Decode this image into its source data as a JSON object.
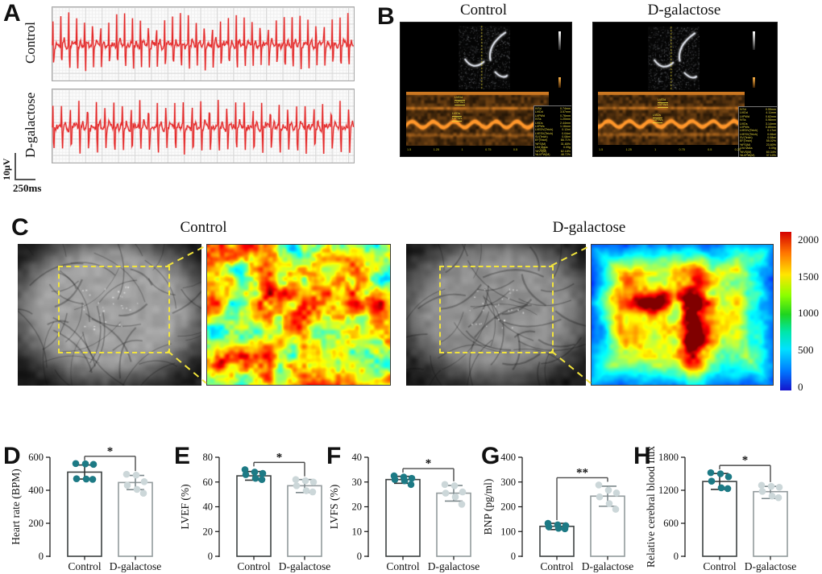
{
  "colors": {
    "control_point": "#1d7a85",
    "dgal_point": "#ccd7d9",
    "control_stroke": "#3d4242",
    "dgal_stroke": "#939b9d",
    "control_err": "#2f3333",
    "dgal_err": "#7d898c",
    "ecg_trace": "#e32a2a",
    "roi_yellow": "#f2e43c",
    "annotation_yellow": "#e8d93c"
  },
  "panel_a": {
    "letter": "A",
    "trace_labels": [
      "Control",
      "D-galactose"
    ],
    "scale_vertical": "10μV",
    "scale_horizontal": "250ms"
  },
  "panel_b": {
    "letter": "B",
    "headers": [
      "Control",
      "D-galactose"
    ],
    "time_ticks": [
      "1.5",
      "1.25",
      "1",
      "0.75",
      "0.5",
      "0.25"
    ],
    "control_annotations": {
      "top": [
        "LVIDd",
        "LVPWd"
      ],
      "mid": [
        "LVIDs",
        "LVPWs"
      ]
    },
    "dgal_annotations": {
      "top": [
        "LVIDd",
        "LVPWd"
      ],
      "mid": [
        "LVIDs",
        "LVPWs"
      ]
    },
    "control_measurements": [
      [
        "IVSd",
        "0.74mm"
      ],
      [
        "LVIDd",
        "3.57mm"
      ],
      [
        "LVPWd",
        "0.76mm"
      ],
      [
        "IVSs",
        "1.20mm"
      ],
      [
        "LVIDs",
        "2.44mm"
      ],
      [
        "LVPWs",
        "1.16mm"
      ],
      [
        "LVEDV(Teich)",
        "0.12ml"
      ],
      [
        "LVESV(Teich)",
        "0.04ml"
      ],
      [
        "SV(Teich)",
        "0.08ml"
      ],
      [
        "EF(Teich)",
        "66.71%"
      ],
      [
        "%FS(M)",
        "31.65%"
      ],
      [
        "LVd Mass",
        "0.09g"
      ],
      [
        "%IVS(M)",
        "62.18%"
      ],
      [
        "%LVPW(M)",
        "48.72%"
      ]
    ],
    "dgal_measurements": [
      [
        "IVSd",
        "0.55mm"
      ],
      [
        "LVIDd",
        "4.11mm"
      ],
      [
        "LVPWd",
        "0.62mm"
      ],
      [
        "IVSs",
        "0.96mm"
      ],
      [
        "LVIDs",
        "3.14mm"
      ],
      [
        "LVPWs",
        "0.85mm"
      ],
      [
        "LVEDV(Teich)",
        "0.17ml"
      ],
      [
        "LVESV(Teich)",
        "0.06ml"
      ],
      [
        "SV(Teich)",
        "0.08ml"
      ],
      [
        "EF(Teich)",
        "55.02%"
      ],
      [
        "%FS(M)",
        "23.60%"
      ],
      [
        "LVd Mass",
        "0.09g"
      ],
      [
        "%IVS(M)",
        "60.34%"
      ],
      [
        "%LVPW(M)",
        "37.10%"
      ]
    ]
  },
  "panel_c": {
    "letter": "C",
    "headers": [
      "Control",
      "D-galactose"
    ],
    "colorbar_ticks": [
      "2000",
      "1500",
      "1000",
      "500",
      "0"
    ]
  },
  "chart_data": [
    {
      "panel": "D",
      "type": "bar",
      "ylabel": "Heart rate (BPM)",
      "ylim": [
        0,
        600
      ],
      "yticks": [
        0,
        200,
        400,
        600
      ],
      "categories": [
        "Control",
        "D-galactose"
      ],
      "significance": "*",
      "series": [
        {
          "name": "Control",
          "mean": 510,
          "sd": [
            468,
            553
          ],
          "points": [
            562,
            560,
            557,
            470,
            468,
            466
          ]
        },
        {
          "name": "D-galactose",
          "mean": 447,
          "sd": [
            404,
            490
          ],
          "points": [
            497,
            492,
            452,
            430,
            405,
            382
          ]
        }
      ]
    },
    {
      "panel": "E",
      "type": "bar",
      "ylabel": "LVEF (%)",
      "ylim": [
        0,
        80
      ],
      "yticks": [
        0,
        20,
        40,
        60,
        80
      ],
      "categories": [
        "Control",
        "D-galactose"
      ],
      "significance": "*",
      "series": [
        {
          "name": "Control",
          "mean": 65,
          "sd": [
            61.5,
            68.5
          ],
          "points": [
            70,
            68,
            67,
            66,
            63,
            62
          ]
        },
        {
          "name": "D-galactose",
          "mean": 57,
          "sd": [
            51.5,
            62
          ],
          "points": [
            62,
            61,
            60,
            57,
            53,
            52
          ]
        }
      ]
    },
    {
      "panel": "F",
      "type": "bar",
      "ylabel": "LVFS (%)",
      "ylim": [
        0,
        40
      ],
      "yticks": [
        0,
        10,
        20,
        30,
        40
      ],
      "categories": [
        "Control",
        "D-galactose"
      ],
      "significance": "*",
      "series": [
        {
          "name": "Control",
          "mean": 31,
          "sd": [
            29.5,
            32.3
          ],
          "points": [
            32.5,
            32,
            31.5,
            31,
            30.5,
            29
          ]
        },
        {
          "name": "D-galactose",
          "mean": 25.5,
          "sd": [
            22.3,
            28.6
          ],
          "points": [
            29,
            28.5,
            26,
            25.5,
            24,
            21
          ]
        }
      ]
    },
    {
      "panel": "G",
      "type": "bar",
      "ylabel": "BNP (pg/ml)",
      "ylim": [
        0,
        400
      ],
      "yticks": [
        0,
        100,
        200,
        300,
        400
      ],
      "categories": [
        "Control",
        "D-galactose"
      ],
      "significance": "**",
      "series": [
        {
          "name": "Control",
          "mean": 121,
          "sd": [
            108,
            133
          ],
          "points": [
            133,
            127,
            124,
            119,
            113,
            111
          ]
        },
        {
          "name": "D-galactose",
          "mean": 243,
          "sd": [
            202,
            283
          ],
          "points": [
            288,
            267,
            256,
            240,
            213,
            190
          ]
        }
      ]
    },
    {
      "panel": "H",
      "type": "bar",
      "ylabel": "Relative cerebral blood flux",
      "ylim": [
        0,
        1800
      ],
      "yticks": [
        0,
        600,
        1200,
        1800
      ],
      "categories": [
        "Control",
        "D-galactose"
      ],
      "significance": "*",
      "series": [
        {
          "name": "Control",
          "mean": 1360,
          "sd": [
            1215,
            1505
          ],
          "points": [
            1520,
            1500,
            1445,
            1365,
            1245,
            1230
          ]
        },
        {
          "name": "D-galactose",
          "mean": 1175,
          "sd": [
            1050,
            1270
          ],
          "points": [
            1290,
            1270,
            1255,
            1180,
            1095,
            1065
          ]
        }
      ]
    }
  ]
}
